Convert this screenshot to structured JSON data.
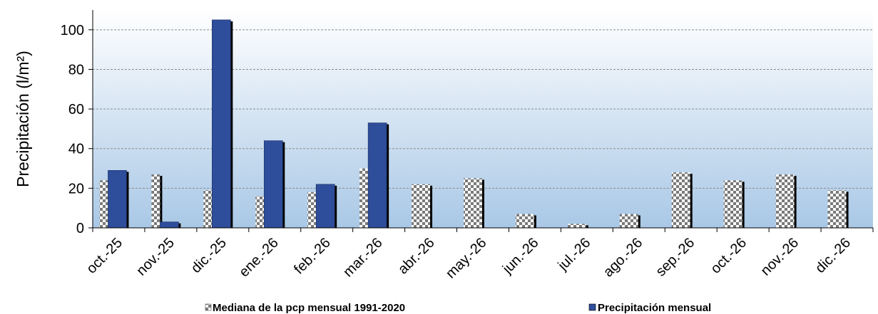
{
  "chart_data": {
    "type": "bar",
    "ylabel": "Precipitación (l/m²)",
    "xlabel": "",
    "ylim": [
      0,
      110
    ],
    "yticks": [
      0,
      20,
      40,
      60,
      80,
      100
    ],
    "grid": true,
    "legend_position": "bottom",
    "categories": [
      "oct.-25",
      "nov.-25",
      "dic.-25",
      "ene.-26",
      "feb.-26",
      "mar.-26",
      "abr.-26",
      "may.-26",
      "jun.-26",
      "jul.-26",
      "ago.-26",
      "sep.-26",
      "oct.-26",
      "nov.-26",
      "dic.-26"
    ],
    "series": [
      {
        "name": "Mediana de la pcp mensual 1991-2020",
        "pattern": "checkerboard",
        "values": [
          24,
          27,
          19,
          16,
          18,
          30,
          22,
          25,
          7,
          2,
          7,
          28,
          24,
          27,
          19
        ]
      },
      {
        "name": "Precipitación mensual",
        "color": "#2e4d9a",
        "values": [
          29,
          3,
          105,
          44,
          22,
          53,
          null,
          null,
          null,
          null,
          null,
          null,
          null,
          null,
          null
        ]
      }
    ]
  },
  "colors": {
    "plot_bg_top": "#ffffff",
    "plot_bg_bottom": "#a9c8e6",
    "bar_blue": "#2e4d9a",
    "grid": "#8c8c8c"
  }
}
